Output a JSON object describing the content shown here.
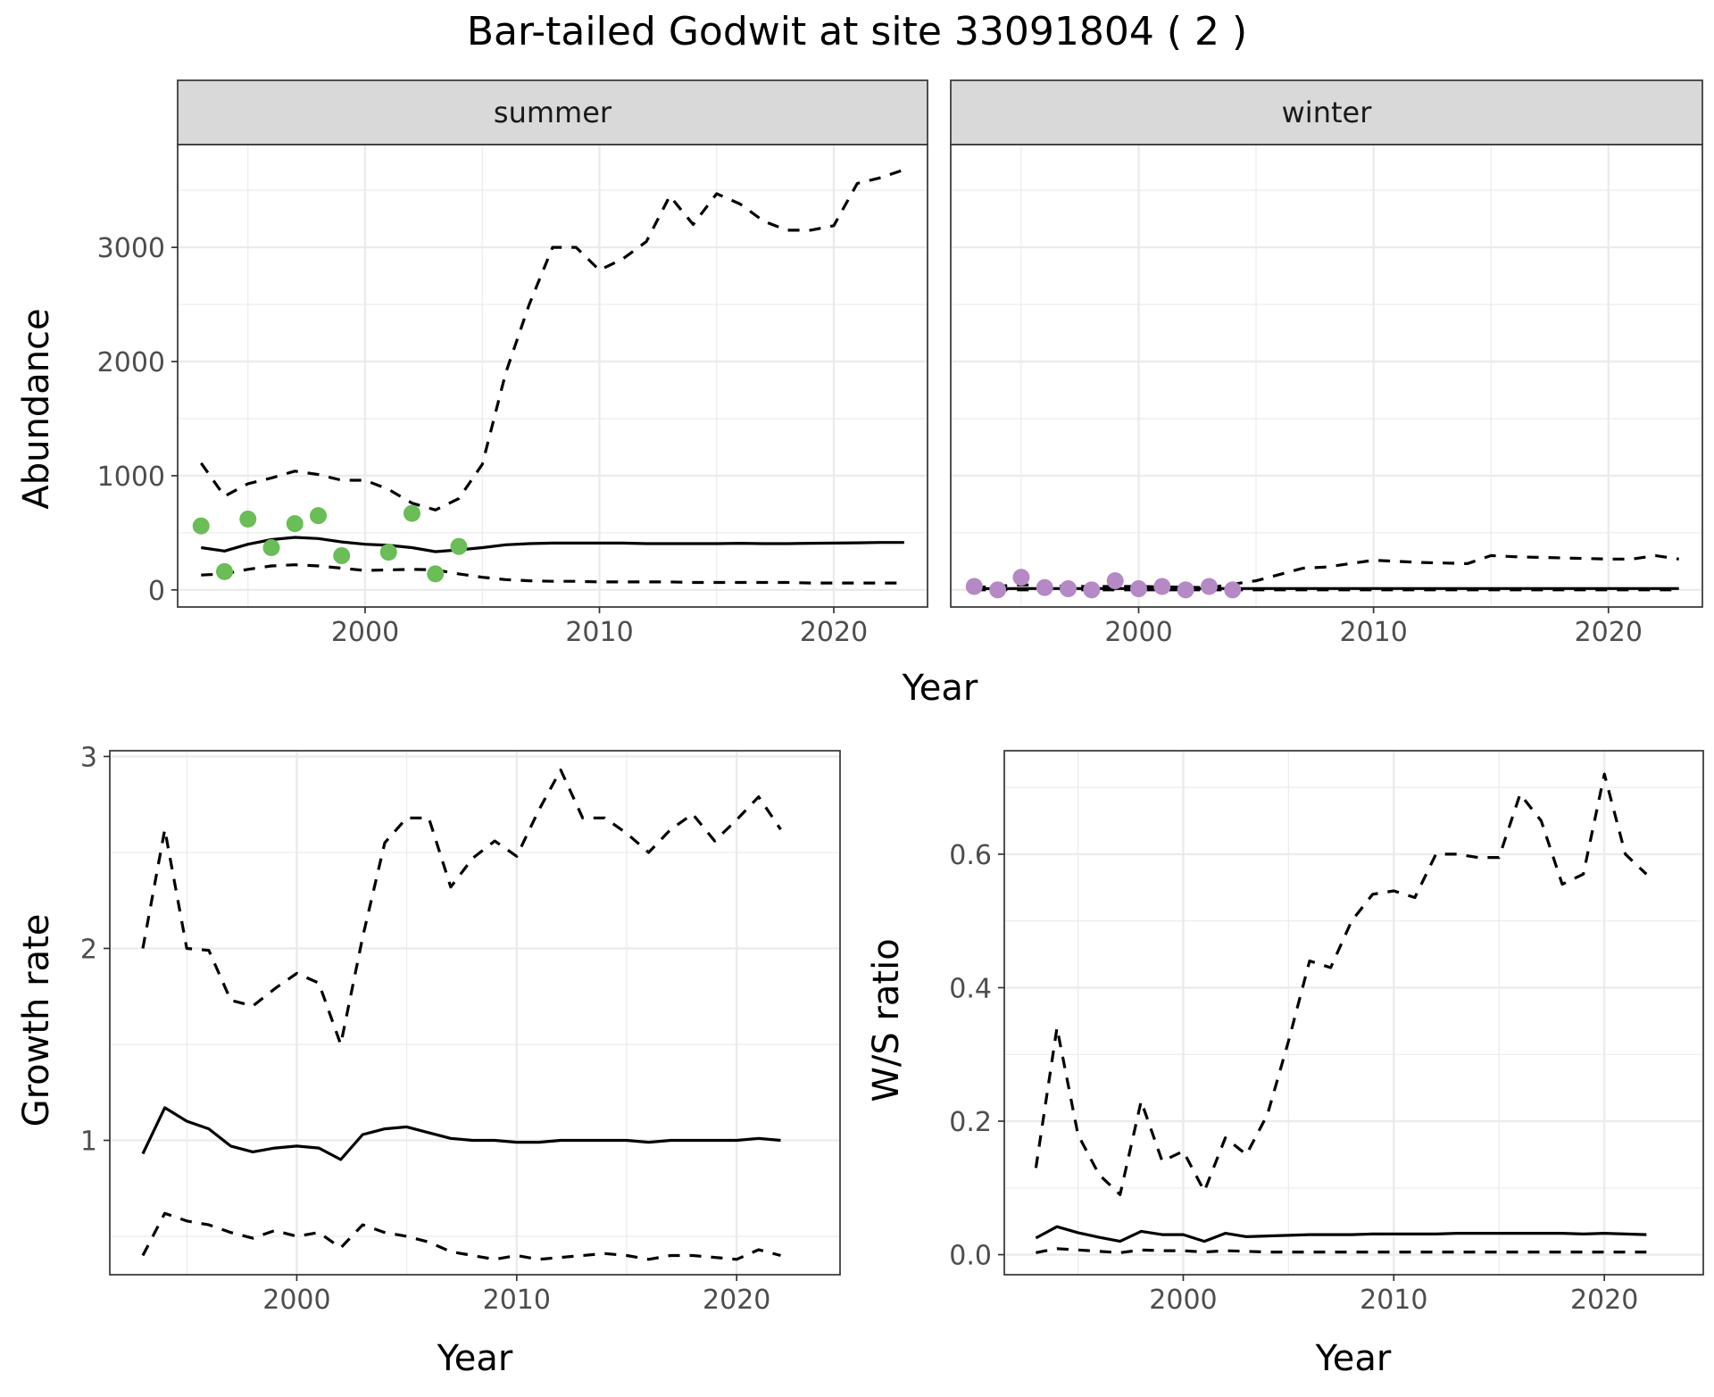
{
  "title": "Bar-tailed Godwit at site 33091804 ( 2 )",
  "chart_data": [
    {
      "type": "line",
      "facet": "summer",
      "xlabel": "Year",
      "ylabel": "Abundance",
      "xlim": [
        1992,
        2024
      ],
      "ylim": [
        -150,
        3900
      ],
      "xticks": [
        2000,
        2010,
        2020
      ],
      "yticks": [
        0,
        1000,
        2000,
        3000
      ],
      "grid": true,
      "points_color": "#6abd57",
      "points": [
        [
          1993,
          560
        ],
        [
          1994,
          160
        ],
        [
          1995,
          620
        ],
        [
          1996,
          370
        ],
        [
          1997,
          580
        ],
        [
          1998,
          650
        ],
        [
          1999,
          300
        ],
        [
          2001,
          330
        ],
        [
          2002,
          670
        ],
        [
          2003,
          140
        ],
        [
          2004,
          380
        ]
      ],
      "fit": [
        [
          1993,
          370
        ],
        [
          1994,
          340
        ],
        [
          1995,
          400
        ],
        [
          1996,
          440
        ],
        [
          1997,
          460
        ],
        [
          1998,
          450
        ],
        [
          1999,
          420
        ],
        [
          2000,
          400
        ],
        [
          2001,
          390
        ],
        [
          2002,
          370
        ],
        [
          2003,
          335
        ],
        [
          2004,
          350
        ],
        [
          2005,
          370
        ],
        [
          2006,
          395
        ],
        [
          2007,
          405
        ],
        [
          2008,
          410
        ],
        [
          2009,
          410
        ],
        [
          2010,
          410
        ],
        [
          2011,
          410
        ],
        [
          2012,
          405
        ],
        [
          2013,
          405
        ],
        [
          2014,
          405
        ],
        [
          2015,
          405
        ],
        [
          2016,
          408
        ],
        [
          2017,
          405
        ],
        [
          2018,
          405
        ],
        [
          2019,
          408
        ],
        [
          2020,
          410
        ],
        [
          2021,
          412
        ],
        [
          2022,
          415
        ],
        [
          2023,
          415
        ]
      ],
      "lower": [
        [
          1993,
          130
        ],
        [
          1994,
          140
        ],
        [
          1995,
          180
        ],
        [
          1996,
          210
        ],
        [
          1997,
          220
        ],
        [
          1998,
          210
        ],
        [
          1999,
          190
        ],
        [
          2000,
          170
        ],
        [
          2001,
          175
        ],
        [
          2002,
          180
        ],
        [
          2003,
          175
        ],
        [
          2004,
          140
        ],
        [
          2005,
          110
        ],
        [
          2006,
          90
        ],
        [
          2007,
          80
        ],
        [
          2008,
          75
        ],
        [
          2009,
          75
        ],
        [
          2010,
          70
        ],
        [
          2011,
          70
        ],
        [
          2012,
          70
        ],
        [
          2013,
          70
        ],
        [
          2014,
          65
        ],
        [
          2015,
          65
        ],
        [
          2016,
          65
        ],
        [
          2017,
          65
        ],
        [
          2018,
          65
        ],
        [
          2019,
          60
        ],
        [
          2020,
          60
        ],
        [
          2021,
          60
        ],
        [
          2022,
          60
        ],
        [
          2023,
          60
        ]
      ],
      "upper": [
        [
          1993,
          1110
        ],
        [
          1994,
          820
        ],
        [
          1995,
          930
        ],
        [
          1996,
          980
        ],
        [
          1997,
          1040
        ],
        [
          1998,
          1010
        ],
        [
          1999,
          960
        ],
        [
          2000,
          960
        ],
        [
          2001,
          880
        ],
        [
          2002,
          760
        ],
        [
          2003,
          700
        ],
        [
          2004,
          800
        ],
        [
          2005,
          1100
        ],
        [
          2006,
          1900
        ],
        [
          2007,
          2500
        ],
        [
          2008,
          3000
        ],
        [
          2009,
          3000
        ],
        [
          2010,
          2800
        ],
        [
          2011,
          2900
        ],
        [
          2012,
          3050
        ],
        [
          2013,
          3450
        ],
        [
          2014,
          3200
        ],
        [
          2015,
          3470
        ],
        [
          2016,
          3380
        ],
        [
          2017,
          3230
        ],
        [
          2018,
          3150
        ],
        [
          2019,
          3150
        ],
        [
          2020,
          3190
        ],
        [
          2021,
          3560
        ],
        [
          2022,
          3610
        ],
        [
          2023,
          3680
        ]
      ]
    },
    {
      "type": "line",
      "facet": "winter",
      "xlabel": "Year",
      "ylabel": "Abundance",
      "xlim": [
        1992,
        2024
      ],
      "ylim": [
        -150,
        3900
      ],
      "xticks": [
        2000,
        2010,
        2020
      ],
      "yticks": [
        0,
        1000,
        2000,
        3000
      ],
      "grid": true,
      "points_color": "#b589c5",
      "points": [
        [
          1993,
          30
        ],
        [
          1994,
          0
        ],
        [
          1995,
          110
        ],
        [
          1996,
          20
        ],
        [
          1997,
          10
        ],
        [
          1998,
          0
        ],
        [
          1999,
          80
        ],
        [
          2000,
          10
        ],
        [
          2001,
          30
        ],
        [
          2002,
          0
        ],
        [
          2003,
          30
        ],
        [
          2004,
          0
        ]
      ],
      "fit": [
        [
          1993,
          10
        ],
        [
          1995,
          12
        ],
        [
          2000,
          12
        ],
        [
          2005,
          12
        ],
        [
          2010,
          12
        ],
        [
          2015,
          12
        ],
        [
          2020,
          12
        ],
        [
          2023,
          12
        ]
      ],
      "lower": [
        [
          1993,
          0
        ],
        [
          2000,
          0
        ],
        [
          2005,
          0
        ],
        [
          2010,
          0
        ],
        [
          2015,
          0
        ],
        [
          2020,
          0
        ],
        [
          2023,
          0
        ]
      ],
      "upper": [
        [
          1993,
          20
        ],
        [
          1995,
          45
        ],
        [
          1997,
          30
        ],
        [
          2000,
          30
        ],
        [
          2003,
          20
        ],
        [
          2005,
          80
        ],
        [
          2007,
          190
        ],
        [
          2008,
          200
        ],
        [
          2010,
          260
        ],
        [
          2012,
          240
        ],
        [
          2014,
          230
        ],
        [
          2015,
          300
        ],
        [
          2016,
          290
        ],
        [
          2018,
          280
        ],
        [
          2020,
          270
        ],
        [
          2021,
          270
        ],
        [
          2022,
          300
        ],
        [
          2023,
          270
        ]
      ]
    },
    {
      "type": "line",
      "xlabel": "Year",
      "ylabel": "Growth rate",
      "xlim": [
        1991.5,
        2024.7
      ],
      "ylim": [
        0.3,
        3.03
      ],
      "xticks": [
        2000,
        2010,
        2020
      ],
      "yticks": [
        1,
        2,
        3
      ],
      "grid": true,
      "fit": [
        [
          1993,
          0.93
        ],
        [
          1994,
          1.17
        ],
        [
          1995,
          1.1
        ],
        [
          1996,
          1.06
        ],
        [
          1997,
          0.97
        ],
        [
          1998,
          0.94
        ],
        [
          1999,
          0.96
        ],
        [
          2000,
          0.97
        ],
        [
          2001,
          0.96
        ],
        [
          2002,
          0.9
        ],
        [
          2003,
          1.03
        ],
        [
          2004,
          1.06
        ],
        [
          2005,
          1.07
        ],
        [
          2006,
          1.04
        ],
        [
          2007,
          1.01
        ],
        [
          2008,
          1.0
        ],
        [
          2009,
          1.0
        ],
        [
          2010,
          0.99
        ],
        [
          2011,
          0.99
        ],
        [
          2012,
          1.0
        ],
        [
          2013,
          1.0
        ],
        [
          2014,
          1.0
        ],
        [
          2015,
          1.0
        ],
        [
          2016,
          0.99
        ],
        [
          2017,
          1.0
        ],
        [
          2018,
          1.0
        ],
        [
          2019,
          1.0
        ],
        [
          2020,
          1.0
        ],
        [
          2021,
          1.01
        ],
        [
          2022,
          1.0
        ]
      ],
      "lower": [
        [
          1993,
          0.4
        ],
        [
          1994,
          0.62
        ],
        [
          1995,
          0.58
        ],
        [
          1996,
          0.56
        ],
        [
          1997,
          0.52
        ],
        [
          1998,
          0.49
        ],
        [
          1999,
          0.53
        ],
        [
          2000,
          0.5
        ],
        [
          2001,
          0.52
        ],
        [
          2002,
          0.44
        ],
        [
          2003,
          0.56
        ],
        [
          2004,
          0.52
        ],
        [
          2005,
          0.5
        ],
        [
          2006,
          0.47
        ],
        [
          2007,
          0.42
        ],
        [
          2008,
          0.4
        ],
        [
          2009,
          0.38
        ],
        [
          2010,
          0.4
        ],
        [
          2011,
          0.38
        ],
        [
          2012,
          0.39
        ],
        [
          2013,
          0.4
        ],
        [
          2014,
          0.41
        ],
        [
          2015,
          0.4
        ],
        [
          2016,
          0.38
        ],
        [
          2017,
          0.4
        ],
        [
          2018,
          0.4
        ],
        [
          2019,
          0.39
        ],
        [
          2020,
          0.38
        ],
        [
          2021,
          0.43
        ],
        [
          2022,
          0.4
        ]
      ],
      "upper": [
        [
          1993,
          2.0
        ],
        [
          1994,
          2.62
        ],
        [
          1995,
          2.0
        ],
        [
          1996,
          1.99
        ],
        [
          1997,
          1.73
        ],
        [
          1998,
          1.7
        ],
        [
          1999,
          1.79
        ],
        [
          2000,
          1.87
        ],
        [
          2001,
          1.82
        ],
        [
          2002,
          1.5
        ],
        [
          2003,
          2.06
        ],
        [
          2004,
          2.55
        ],
        [
          2005,
          2.68
        ],
        [
          2006,
          2.68
        ],
        [
          2007,
          2.32
        ],
        [
          2008,
          2.47
        ],
        [
          2009,
          2.56
        ],
        [
          2010,
          2.48
        ],
        [
          2011,
          2.72
        ],
        [
          2012,
          2.93
        ],
        [
          2013,
          2.68
        ],
        [
          2014,
          2.68
        ],
        [
          2015,
          2.6
        ],
        [
          2016,
          2.5
        ],
        [
          2017,
          2.62
        ],
        [
          2018,
          2.7
        ],
        [
          2019,
          2.56
        ],
        [
          2020,
          2.67
        ],
        [
          2021,
          2.79
        ],
        [
          2022,
          2.62
        ]
      ]
    },
    {
      "type": "line",
      "xlabel": "Year",
      "ylabel": "W/S ratio",
      "xlim": [
        1991.5,
        2024.7
      ],
      "ylim": [
        -0.03,
        0.755
      ],
      "xticks": [
        2000,
        2010,
        2020
      ],
      "yticks": [
        0.0,
        0.2,
        0.4,
        0.6
      ],
      "ytick_labels": [
        "0.0",
        "0.2",
        "0.4",
        "0.6"
      ],
      "grid": true,
      "fit": [
        [
          1993,
          0.025
        ],
        [
          1994,
          0.042
        ],
        [
          1995,
          0.033
        ],
        [
          1996,
          0.026
        ],
        [
          1997,
          0.02
        ],
        [
          1998,
          0.035
        ],
        [
          1999,
          0.03
        ],
        [
          2000,
          0.03
        ],
        [
          2001,
          0.02
        ],
        [
          2002,
          0.032
        ],
        [
          2003,
          0.027
        ],
        [
          2004,
          0.028
        ],
        [
          2005,
          0.029
        ],
        [
          2006,
          0.03
        ],
        [
          2007,
          0.03
        ],
        [
          2008,
          0.03
        ],
        [
          2009,
          0.031
        ],
        [
          2010,
          0.031
        ],
        [
          2011,
          0.031
        ],
        [
          2012,
          0.031
        ],
        [
          2013,
          0.032
        ],
        [
          2014,
          0.032
        ],
        [
          2015,
          0.032
        ],
        [
          2016,
          0.032
        ],
        [
          2017,
          0.032
        ],
        [
          2018,
          0.032
        ],
        [
          2019,
          0.031
        ],
        [
          2020,
          0.032
        ],
        [
          2021,
          0.031
        ],
        [
          2022,
          0.03
        ]
      ],
      "lower": [
        [
          1993,
          0.003
        ],
        [
          1994,
          0.009
        ],
        [
          1995,
          0.007
        ],
        [
          1996,
          0.005
        ],
        [
          1997,
          0.003
        ],
        [
          1998,
          0.007
        ],
        [
          1999,
          0.006
        ],
        [
          2000,
          0.006
        ],
        [
          2001,
          0.004
        ],
        [
          2002,
          0.006
        ],
        [
          2003,
          0.005
        ],
        [
          2004,
          0.004
        ],
        [
          2005,
          0.004
        ],
        [
          2006,
          0.004
        ],
        [
          2007,
          0.004
        ],
        [
          2008,
          0.004
        ],
        [
          2009,
          0.004
        ],
        [
          2010,
          0.004
        ],
        [
          2011,
          0.004
        ],
        [
          2012,
          0.004
        ],
        [
          2013,
          0.004
        ],
        [
          2014,
          0.004
        ],
        [
          2015,
          0.004
        ],
        [
          2016,
          0.004
        ],
        [
          2017,
          0.004
        ],
        [
          2018,
          0.004
        ],
        [
          2019,
          0.004
        ],
        [
          2020,
          0.004
        ],
        [
          2021,
          0.004
        ],
        [
          2022,
          0.004
        ]
      ],
      "upper": [
        [
          1993,
          0.13
        ],
        [
          1994,
          0.34
        ],
        [
          1995,
          0.18
        ],
        [
          1996,
          0.12
        ],
        [
          1997,
          0.09
        ],
        [
          1998,
          0.23
        ],
        [
          1999,
          0.14
        ],
        [
          2000,
          0.155
        ],
        [
          2001,
          0.095
        ],
        [
          2002,
          0.175
        ],
        [
          2003,
          0.15
        ],
        [
          2004,
          0.21
        ],
        [
          2005,
          0.32
        ],
        [
          2006,
          0.44
        ],
        [
          2007,
          0.43
        ],
        [
          2008,
          0.5
        ],
        [
          2009,
          0.54
        ],
        [
          2010,
          0.545
        ],
        [
          2011,
          0.535
        ],
        [
          2012,
          0.6
        ],
        [
          2013,
          0.6
        ],
        [
          2014,
          0.595
        ],
        [
          2015,
          0.595
        ],
        [
          2016,
          0.69
        ],
        [
          2017,
          0.65
        ],
        [
          2018,
          0.555
        ],
        [
          2019,
          0.57
        ],
        [
          2020,
          0.72
        ],
        [
          2021,
          0.6
        ],
        [
          2022,
          0.57
        ]
      ]
    }
  ]
}
